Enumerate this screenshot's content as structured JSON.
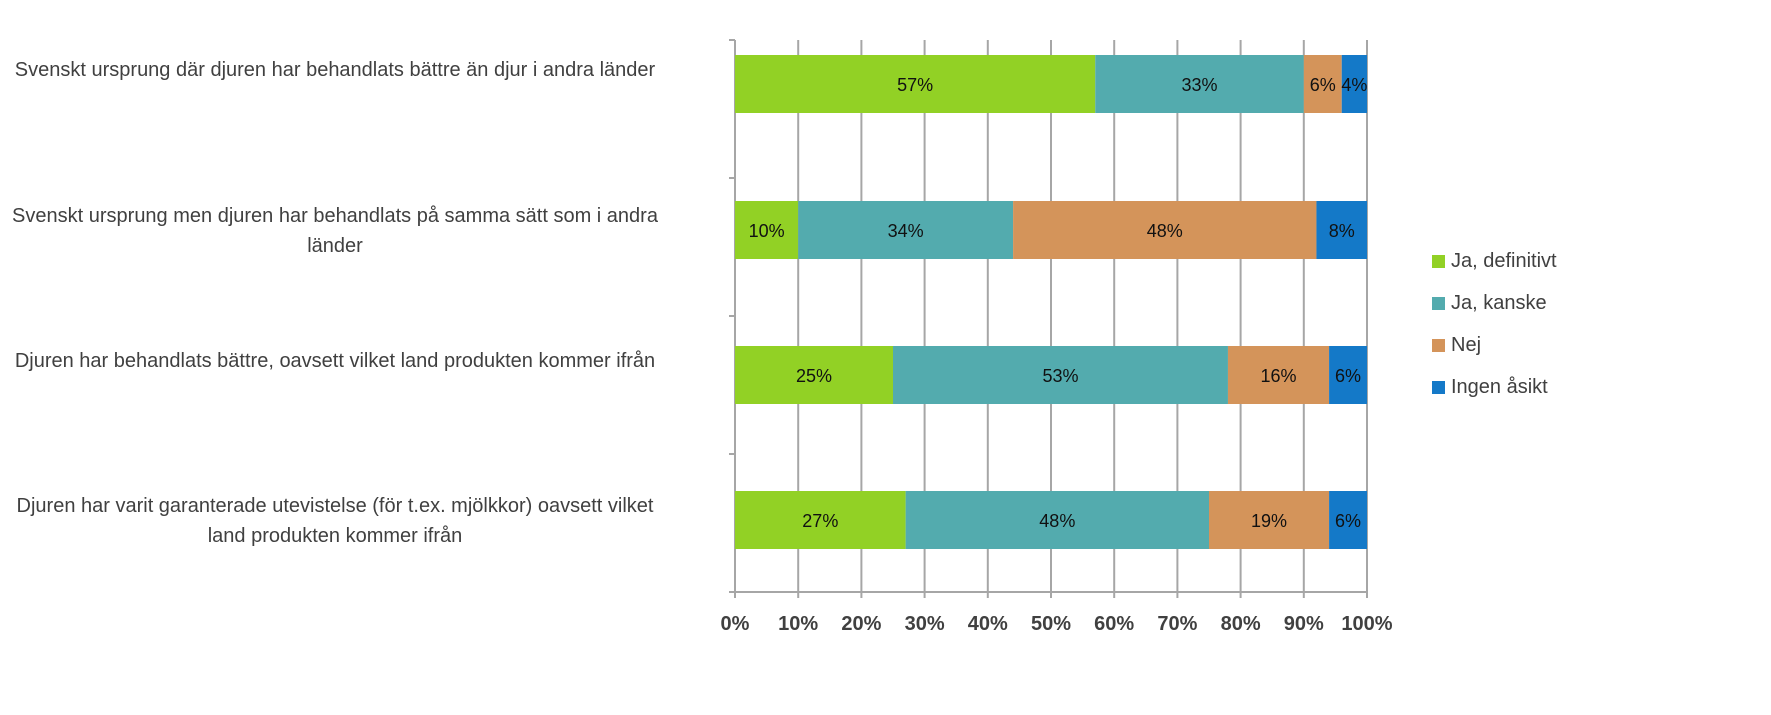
{
  "chart_data": {
    "type": "bar",
    "orientation": "horizontal",
    "stacked": true,
    "percent": true,
    "categories": [
      "Svenskt ursprung där djuren har behandlats bättre än djur i andra länder",
      "Svenskt ursprung men djuren har behandlats på samma sätt som i andra länder",
      "Djuren har behandlats bättre, oavsett vilket land produkten kommer ifrån",
      "Djuren har varit garanterade utevistelse (för t.ex. mjölkkor) oavsett vilket land produkten kommer ifrån"
    ],
    "series": [
      {
        "name": "Ja, definitivt",
        "color": "#92D125",
        "values": [
          57,
          10,
          25,
          27
        ],
        "labels": [
          "57%",
          "10%",
          "25%",
          "27%"
        ]
      },
      {
        "name": "Ja, kanske",
        "color": "#53ABAE",
        "values": [
          33,
          34,
          53,
          48
        ],
        "labels": [
          "33%",
          "34%",
          "53%",
          "48%"
        ]
      },
      {
        "name": "Nej",
        "color": "#D4945A",
        "values": [
          6,
          48,
          16,
          19
        ],
        "labels": [
          "6%",
          "48%",
          "16%",
          "19%"
        ]
      },
      {
        "name": "Ingen åsikt",
        "color": "#1479C8",
        "values": [
          4,
          8,
          6,
          6
        ],
        "labels": [
          "4%",
          "8%",
          "6%",
          "6%"
        ]
      }
    ],
    "xlim": [
      0,
      100
    ],
    "xticks": [
      "0%",
      "10%",
      "20%",
      "30%",
      "40%",
      "50%",
      "60%",
      "70%",
      "80%",
      "90%",
      "100%"
    ],
    "grid": true,
    "legend": "right",
    "title": "",
    "xlabel": "",
    "ylabel": ""
  }
}
